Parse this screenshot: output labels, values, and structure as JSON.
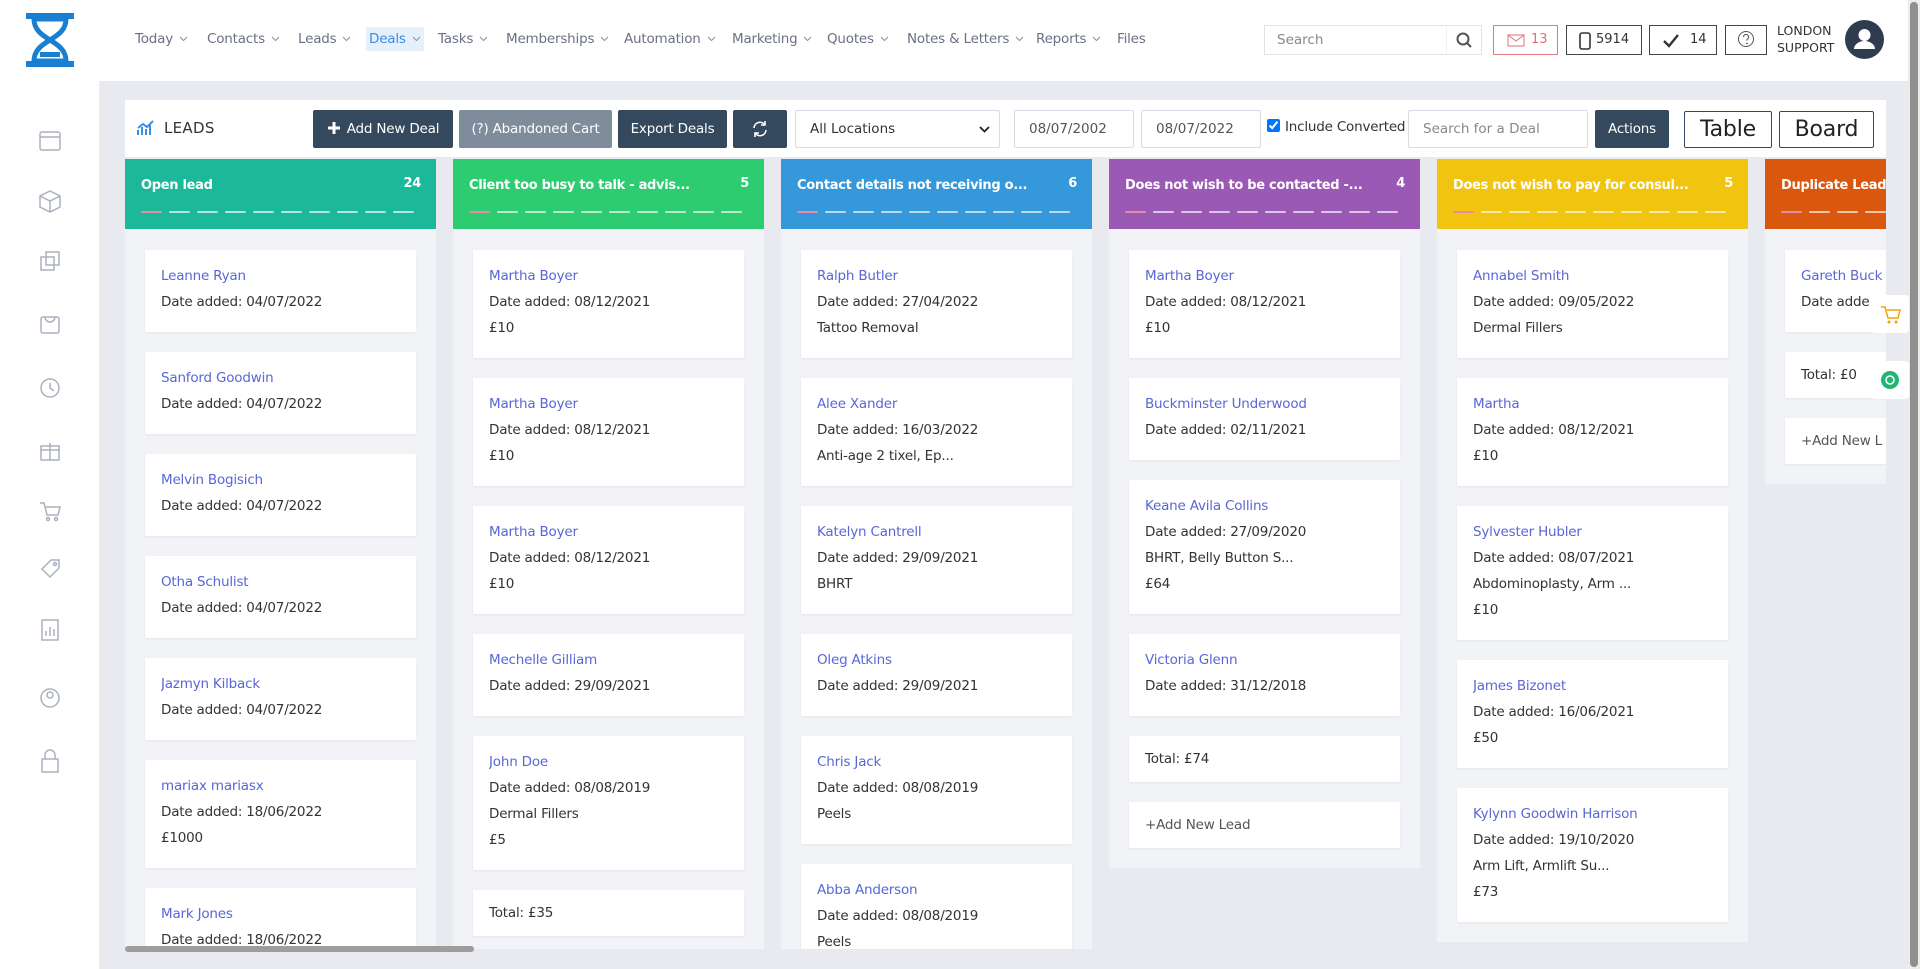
{
  "header": {
    "nav": [
      "Today",
      "Contacts",
      "Leads",
      "Deals",
      "Tasks",
      "Memberships",
      "Automation",
      "Marketing",
      "Quotes",
      "Notes & Letters",
      "Reports",
      "Files"
    ],
    "active_nav": 3,
    "search_placeholder": "Search",
    "mail_count": 13,
    "phone_count": 5914,
    "task_count": 14,
    "user": [
      "LONDON",
      "SUPPORT"
    ]
  },
  "toolbar": {
    "title": "LEADS",
    "buttons": [
      "Add New Deal",
      "(?) Abandoned Cart",
      "Export Deals"
    ],
    "location": "All Locations",
    "date_from": "08/07/2002",
    "date_to": "08/07/2022",
    "include_converted": "Include Converted",
    "converted_checked": true,
    "deal_search_placeholder": "Search for a Deal",
    "actions": "Actions",
    "views": [
      "Table",
      "Board"
    ]
  },
  "columns": [
    {
      "title": "Open lead",
      "count": 24,
      "color": "#1bb99a",
      "cards": [
        {
          "name": "Leanne Ryan",
          "date": "Date added: 04/07/2022",
          "details": []
        },
        {
          "name": "Sanford Goodwin",
          "date": "Date added: 04/07/2022",
          "details": []
        },
        {
          "name": "Melvin Bogisich",
          "date": "Date added: 04/07/2022",
          "details": []
        },
        {
          "name": "Otha Schulist",
          "date": "Date added: 04/07/2022",
          "details": []
        },
        {
          "name": "Jazmyn Kilback",
          "date": "Date added: 04/07/2022",
          "details": []
        },
        {
          "name": "mariax mariasx",
          "date": "Date added: 18/06/2022",
          "details": [
            "£1000"
          ]
        },
        {
          "name": "Mark Jones",
          "date": "Date added: 18/06/2022",
          "details": []
        }
      ]
    },
    {
      "title": "Client too busy to talk - advis...",
      "count": 5,
      "color": "#2ecc71",
      "cards": [
        {
          "name": "Martha Boyer",
          "date": "Date added: 08/12/2021",
          "details": [
            "£10"
          ]
        },
        {
          "name": "Martha Boyer",
          "date": "Date added: 08/12/2021",
          "details": [
            "£10"
          ]
        },
        {
          "name": "Martha Boyer",
          "date": "Date added: 08/12/2021",
          "details": [
            "£10"
          ]
        },
        {
          "name": "Mechelle Gilliam",
          "date": "Date added: 29/09/2021",
          "details": []
        },
        {
          "name": "John Doe",
          "date": "Date added: 08/08/2019",
          "details": [
            "Dermal Fillers",
            "£5"
          ]
        }
      ],
      "total": "Total: £35"
    },
    {
      "title": "Contact details not receiving o...",
      "count": 6,
      "color": "#3498db",
      "cards": [
        {
          "name": "Ralph Butler",
          "date": "Date added: 27/04/2022",
          "details": [
            "Tattoo Removal"
          ]
        },
        {
          "name": "Alee Xander",
          "date": "Date added: 16/03/2022",
          "details": [
            "Anti-age 2 tixel, Ep..."
          ]
        },
        {
          "name": "Katelyn Cantrell",
          "date": "Date added: 29/09/2021",
          "details": [
            "BHRT"
          ]
        },
        {
          "name": "Oleg Atkins",
          "date": "Date added: 29/09/2021",
          "details": []
        },
        {
          "name": "Chris Jack",
          "date": "Date added: 08/08/2019",
          "details": [
            "Peels"
          ]
        },
        {
          "name": "Abba Anderson",
          "date": "Date added: 08/08/2019",
          "details": [
            "Peels"
          ]
        }
      ]
    },
    {
      "title": "Does not wish to be contacted -...",
      "count": 4,
      "color": "#9b59b6",
      "cards": [
        {
          "name": "Martha Boyer",
          "date": "Date added: 08/12/2021",
          "details": [
            "£10"
          ]
        },
        {
          "name": "Buckminster Underwood",
          "date": "Date added: 02/11/2021",
          "details": []
        },
        {
          "name": "Keane Avila Collins",
          "date": "Date added: 27/09/2020",
          "details": [
            "BHRT, Belly Button S...",
            "£64"
          ]
        },
        {
          "name": "Victoria Glenn",
          "date": "Date added: 31/12/2018",
          "details": []
        }
      ],
      "total": "Total: £74",
      "add": "+Add New Lead"
    },
    {
      "title": "Does not wish to pay for consul...",
      "count": 5,
      "color": "#f1c40f",
      "cards": [
        {
          "name": "Annabel Smith",
          "date": "Date added: 09/05/2022",
          "details": [
            "Dermal Fillers"
          ]
        },
        {
          "name": "Martha",
          "date": "Date added: 08/12/2021",
          "details": [
            "£10"
          ]
        },
        {
          "name": "Sylvester Hubler",
          "date": "Date added: 08/07/2021",
          "details": [
            "Abdominoplasty, Arm ...",
            "£10"
          ]
        },
        {
          "name": "James Bizonet",
          "date": "Date added: 16/06/2021",
          "details": [
            "£50"
          ]
        },
        {
          "name": "Kylynn Goodwin Harrison",
          "date": "Date added: 19/10/2020",
          "details": [
            "Arm Lift, Armlift Su...",
            "£73"
          ]
        }
      ]
    },
    {
      "title": "Duplicate Lead",
      "color": "#d9580d",
      "cards": [
        {
          "name": "Gareth Buck",
          "date": "Date adde",
          "details": []
        }
      ],
      "total": "Total: £0",
      "add": "+Add New L"
    }
  ]
}
